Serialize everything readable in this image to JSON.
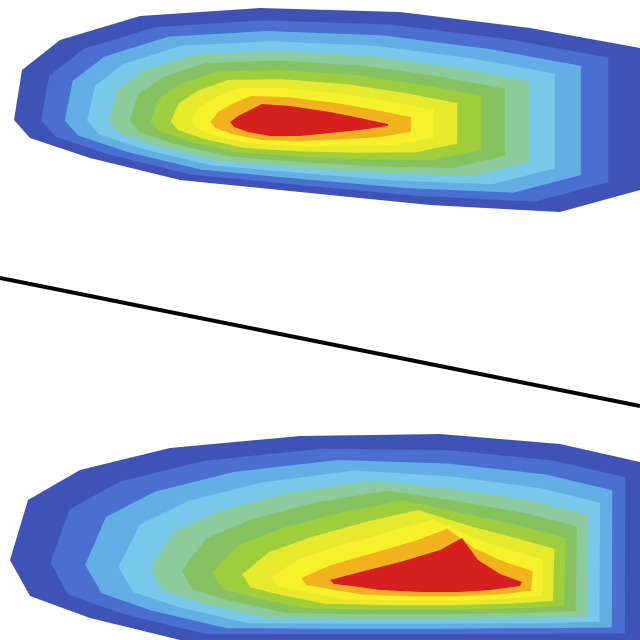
{
  "chart_data": {
    "type": "heatmap",
    "title": "",
    "xlabel": "",
    "ylabel": "",
    "grid": false,
    "legend": "none",
    "colormap": [
      "#3f53b6",
      "#4a6fd0",
      "#64aee6",
      "#78c9e9",
      "#8ccc9c",
      "#86c25f",
      "#9fce3d",
      "#e7ea2c",
      "#f6f12a",
      "#f2b21d",
      "#d62020"
    ],
    "background": "#ffffff",
    "panels": [
      {
        "id": "upper",
        "level_count": 11
      },
      {
        "id": "lower",
        "level_count": 11
      }
    ],
    "separator_line": {
      "color": "#000000"
    }
  }
}
